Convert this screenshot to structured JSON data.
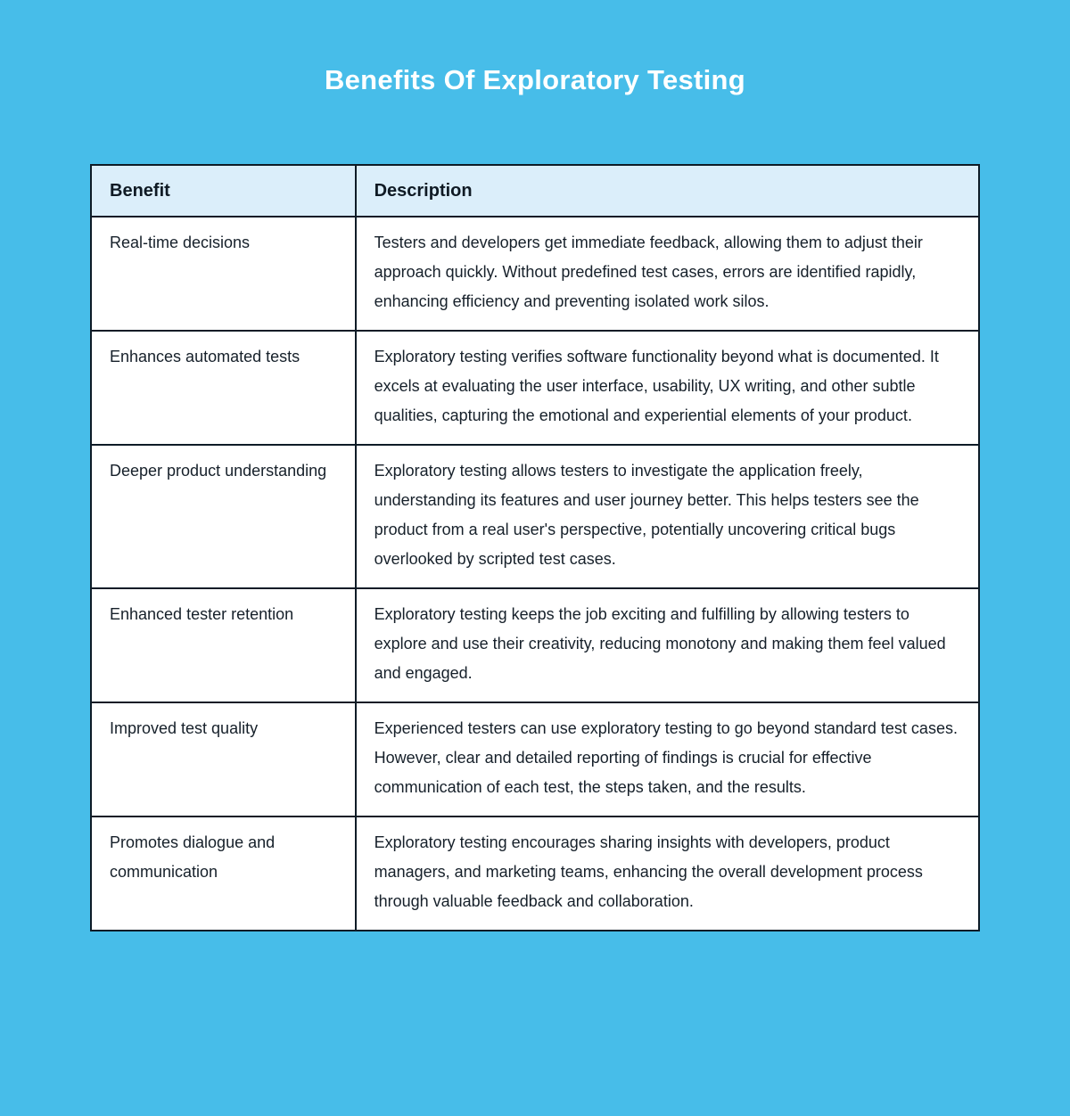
{
  "page": {
    "title": "Benefits Of Exploratory Testing",
    "background_color": "#47BDE9",
    "title_color": "#FFFFFF"
  },
  "table": {
    "border_color": "#0E1B26",
    "header": {
      "background_color": "#DBEEFA",
      "benefit": "Benefit",
      "description": "Description"
    },
    "rows": [
      {
        "benefit": "Real-time decisions",
        "description": "Testers and developers get immediate feedback, allowing them to adjust their approach quickly. Without predefined test cases, errors are identified rapidly, enhancing efficiency and preventing isolated work silos."
      },
      {
        "benefit": "Enhances automated tests",
        "description": "Exploratory testing verifies software functionality beyond what is documented. It excels at evaluating the user interface, usability, UX writing, and other subtle qualities, capturing the emotional and experiential elements of your product."
      },
      {
        "benefit": "Deeper product understanding",
        "description": "Exploratory testing allows testers to investigate the application freely, understanding its features and user journey better. This helps testers see the product from a real user's perspective, potentially uncovering critical bugs overlooked by scripted test cases."
      },
      {
        "benefit": "Enhanced tester retention",
        "description": "Exploratory testing keeps the job exciting and fulfilling by allowing testers to explore and use their creativity, reducing monotony and making them feel valued and engaged."
      },
      {
        "benefit": "Improved test quality",
        "description": "Experienced testers can use exploratory testing to go beyond standard test cases. However, clear and detailed reporting of findings is crucial for effective communication of each test, the steps taken, and the results."
      },
      {
        "benefit": "Promotes dialogue and communication",
        "description": "Exploratory testing encourages sharing insights with developers, product managers, and marketing teams, enhancing the overall development process through valuable feedback and collaboration."
      }
    ]
  }
}
